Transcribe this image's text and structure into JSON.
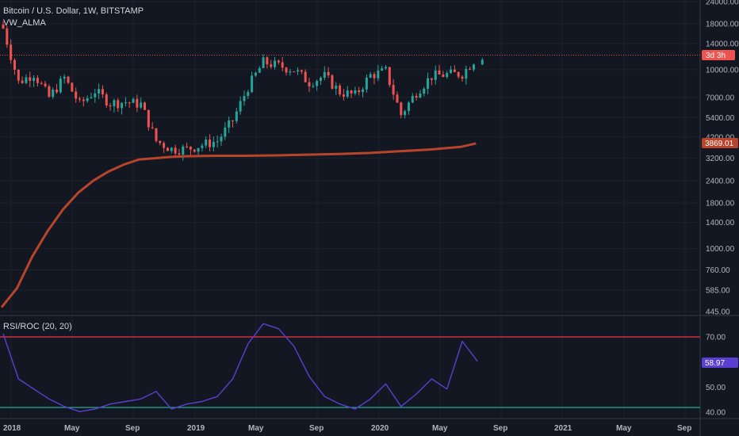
{
  "price_pane": {
    "symbol_title": "Bitcoin / U.S. Dollar, 1W, BITSTAMP",
    "indicator_name": "VW_ALMA",
    "y_axis_labels": [
      "24000.00",
      "18000.00",
      "14000.00",
      "10000.00",
      "7000.00",
      "5400.00",
      "4200.00",
      "3200.00",
      "2400.00",
      "1800.00",
      "1400.00",
      "1000.00",
      "760.00",
      "585.00",
      "445.00"
    ],
    "countdown_tag": "3d 3h",
    "alma_tag": "3869.01"
  },
  "osc_pane": {
    "indicator_title": "RSI/ROC (20, 20)",
    "y_axis_labels": [
      "70.00",
      "50.00",
      "40.00"
    ],
    "value_tag": "58.97"
  },
  "time_axis": {
    "labels": [
      "2018",
      "May",
      "Sep",
      "2019",
      "May",
      "Sep",
      "2020",
      "May",
      "Sep",
      "2021",
      "May",
      "Sep"
    ]
  },
  "colors": {
    "background": "#131722",
    "candle_up": "#26a69a",
    "candle_down": "#ef5350",
    "alma_line": "#b8442c",
    "rsi_line": "#5b3fd1",
    "upper_band": "#f23645",
    "lower_band": "#22ab94",
    "price_line": "#ef5350"
  },
  "chart_data": [
    {
      "type": "line",
      "title": "Bitcoin / U.S. Dollar, 1W, BITSTAMP",
      "series": [
        {
          "name": "VW_ALMA",
          "x": [
            "2018-01",
            "2018-02",
            "2018-03",
            "2018-04",
            "2018-05",
            "2018-06",
            "2018-07",
            "2018-08",
            "2018-09",
            "2018-10",
            "2018-11",
            "2018-12",
            "2019-01",
            "2019-03",
            "2019-05",
            "2019-07",
            "2019-09",
            "2019-11",
            "2020-01",
            "2020-03",
            "2020-05",
            "2020-07",
            "2020-08"
          ],
          "values": [
            470,
            600,
            900,
            1250,
            1650,
            2050,
            2400,
            2700,
            2950,
            3150,
            3200,
            3250,
            3280,
            3300,
            3300,
            3320,
            3350,
            3380,
            3420,
            3500,
            3580,
            3700,
            3869
          ]
        }
      ],
      "ohlc_path": [
        [
          "2018-01",
          17000
        ],
        [
          "2018-02",
          8500
        ],
        [
          "2018-03",
          9500
        ],
        [
          "2018-04",
          7000
        ],
        [
          "2018-05",
          9000
        ],
        [
          "2018-06",
          6400
        ],
        [
          "2018-07",
          7600
        ],
        [
          "2018-08",
          6500
        ],
        [
          "2018-09",
          6600
        ],
        [
          "2018-10",
          6400
        ],
        [
          "2018-11",
          4000
        ],
        [
          "2018-12",
          3600
        ],
        [
          "2019-01",
          3600
        ],
        [
          "2019-02",
          3800
        ],
        [
          "2019-03",
          4000
        ],
        [
          "2019-04",
          5200
        ],
        [
          "2019-05",
          8000
        ],
        [
          "2019-06",
          11000
        ],
        [
          "2019-07",
          10500
        ],
        [
          "2019-08",
          10000
        ],
        [
          "2019-09",
          8500
        ],
        [
          "2019-10",
          9200
        ],
        [
          "2019-11",
          7500
        ],
        [
          "2019-12",
          7200
        ],
        [
          "2020-01",
          9300
        ],
        [
          "2020-02",
          9800
        ],
        [
          "2020-03",
          5600
        ],
        [
          "2020-04",
          7500
        ],
        [
          "2020-05",
          9200
        ],
        [
          "2020-06",
          9400
        ],
        [
          "2020-07",
          9500
        ],
        [
          "2020-08",
          11900
        ]
      ],
      "last_price_note": "price line near 12000 (countdown 3d 3h)",
      "y_scale": "log",
      "ylim": [
        445,
        24000
      ]
    },
    {
      "type": "line",
      "title": "RSI/ROC (20, 20)",
      "series": [
        {
          "name": "RSI/ROC (20, 20)",
          "x": [
            "2018-01",
            "2018-02",
            "2018-03",
            "2018-04",
            "2018-05",
            "2018-06",
            "2018-07",
            "2018-08",
            "2018-09",
            "2018-10",
            "2018-11",
            "2018-12",
            "2019-01",
            "2019-02",
            "2019-03",
            "2019-04",
            "2019-05",
            "2019-06",
            "2019-07",
            "2019-08",
            "2019-09",
            "2019-10",
            "2019-11",
            "2019-12",
            "2020-01",
            "2020-02",
            "2020-03",
            "2020-04",
            "2020-05",
            "2020-06",
            "2020-07",
            "2020-08"
          ],
          "values": [
            70,
            52,
            48,
            44,
            41,
            39,
            40,
            42,
            43,
            44,
            47,
            40,
            42,
            43,
            45,
            52,
            66,
            74,
            72,
            65,
            53,
            45,
            42,
            40,
            44,
            50,
            41,
            46,
            52,
            48,
            67,
            58.97
          ]
        }
      ],
      "bands": [
        70,
        40
      ],
      "ylim": [
        38,
        78
      ]
    }
  ]
}
